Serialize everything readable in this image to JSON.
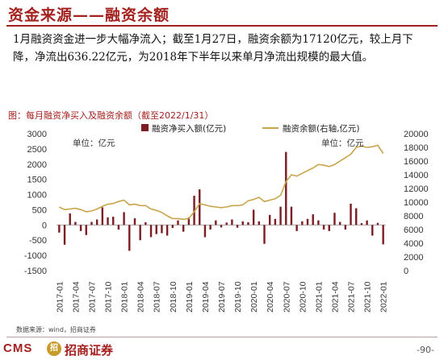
{
  "header": {
    "title": "资金来源——融资余额",
    "body": "1月融资资金进一步大幅净流入；截至1月27日，融资余额为17120亿元，较上月下降，净流出636.22亿元，为2018年下半年以来单月净流出规模的最大值。"
  },
  "figure_caption": "图：每月融资净买入及融资余额（截至2022/1/31）",
  "source_note": "数据来源：wind，招商证券",
  "footer": {
    "logo_text": "CMS",
    "logo_mark": "招",
    "logo_cn": "招商证券",
    "page_number": "-90-"
  },
  "chart_data": {
    "type": "bar+line",
    "colors": {
      "bar": "#7b1d22",
      "line": "#c8a54a"
    },
    "legend": {
      "bar": "融资净买入额(亿元)",
      "line": "融资余额(右轴,亿元)",
      "placement": "top"
    },
    "left_axis": {
      "unit_label": "单位：亿元",
      "min": -1500,
      "max": 3000,
      "ticks": [
        -1500,
        -1000,
        -500,
        0,
        500,
        1000,
        1500,
        2000,
        2500,
        3000
      ]
    },
    "right_axis": {
      "unit_label": "单位：亿元",
      "min": 0,
      "max": 20000,
      "ticks": [
        0,
        2000,
        4000,
        6000,
        8000,
        10000,
        12000,
        14000,
        16000,
        18000,
        20000
      ]
    },
    "x_tick_labels": [
      "2017-01",
      "2017-04",
      "2017-07",
      "2017-10",
      "2018-01",
      "2018-04",
      "2018-07",
      "2018-10",
      "2019-01",
      "2019-04",
      "2019-07",
      "2019-10",
      "2020-01",
      "2020-04",
      "2020-07",
      "2020-10",
      "2021-01",
      "2021-04",
      "2021-07",
      "2021-10",
      "2022-01"
    ],
    "months": [
      "2017-01",
      "2017-02",
      "2017-03",
      "2017-04",
      "2017-05",
      "2017-06",
      "2017-07",
      "2017-08",
      "2017-09",
      "2017-10",
      "2017-11",
      "2017-12",
      "2018-01",
      "2018-02",
      "2018-03",
      "2018-04",
      "2018-05",
      "2018-06",
      "2018-07",
      "2018-08",
      "2018-09",
      "2018-10",
      "2018-11",
      "2018-12",
      "2019-01",
      "2019-02",
      "2019-03",
      "2019-04",
      "2019-05",
      "2019-06",
      "2019-07",
      "2019-08",
      "2019-09",
      "2019-10",
      "2019-11",
      "2019-12",
      "2020-01",
      "2020-02",
      "2020-03",
      "2020-04",
      "2020-05",
      "2020-06",
      "2020-07",
      "2020-08",
      "2020-09",
      "2020-10",
      "2020-11",
      "2020-12",
      "2021-01",
      "2021-02",
      "2021-03",
      "2021-04",
      "2021-05",
      "2021-06",
      "2021-07",
      "2021-08",
      "2021-09",
      "2021-10",
      "2021-11",
      "2021-12",
      "2022-01"
    ],
    "net_buy": [
      -250,
      -650,
      380,
      100,
      -200,
      -330,
      100,
      180,
      580,
      250,
      270,
      -150,
      420,
      -850,
      220,
      -500,
      90,
      -400,
      -300,
      -270,
      -350,
      -100,
      150,
      -220,
      250,
      960,
      1170,
      -400,
      -150,
      150,
      -80,
      80,
      180,
      -90,
      120,
      90,
      500,
      120,
      -620,
      330,
      200,
      600,
      2400,
      600,
      -200,
      120,
      200,
      350,
      150,
      -150,
      -200,
      400,
      100,
      -150,
      700,
      550,
      60,
      150,
      -350,
      70,
      -636.22
    ],
    "balance": [
      9300,
      8900,
      9000,
      9100,
      8900,
      8600,
      8700,
      9000,
      9400,
      9700,
      9800,
      10100,
      10300,
      9600,
      9700,
      9500,
      9500,
      9000,
      8800,
      8500,
      8000,
      7600,
      7600,
      7500,
      7600,
      8600,
      9800,
      9600,
      9400,
      9300,
      9200,
      9300,
      9500,
      9500,
      9600,
      10200,
      10400,
      10700,
      10100,
      10300,
      10500,
      11000,
      13000,
      14000,
      13800,
      14200,
      14600,
      15000,
      15500,
      15400,
      15200,
      15500,
      16000,
      16500,
      17000,
      18000,
      18200,
      18000,
      18100,
      18300,
      17120
    ]
  }
}
